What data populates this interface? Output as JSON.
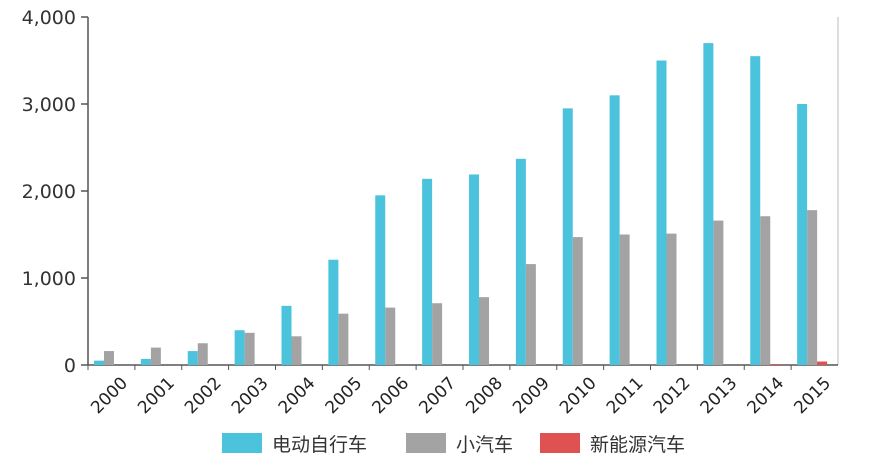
{
  "chart_data": {
    "type": "bar",
    "categories": [
      "2000",
      "2001",
      "2002",
      "2003",
      "2004",
      "2005",
      "2006",
      "2007",
      "2008",
      "2009",
      "2010",
      "2011",
      "2012",
      "2013",
      "2014",
      "2015"
    ],
    "series": [
      {
        "name": "电动自行车",
        "color": "#4cc3dd",
        "values": [
          50,
          70,
          160,
          400,
          680,
          1210,
          1950,
          2140,
          2190,
          2370,
          2950,
          3100,
          3500,
          3700,
          3550,
          3000
        ]
      },
      {
        "name": "小汽车",
        "color": "#a3a3a3",
        "values": [
          160,
          200,
          250,
          370,
          330,
          590,
          660,
          710,
          780,
          1160,
          1470,
          1500,
          1510,
          1660,
          1710,
          1780
        ]
      },
      {
        "name": "新能源汽车",
        "color": "#e05252",
        "values": [
          0,
          0,
          0,
          0,
          0,
          0,
          0,
          0,
          0,
          0,
          0,
          0,
          0,
          0,
          10,
          40
        ]
      }
    ],
    "ylim": [
      0,
      4000
    ],
    "yticks": [
      0,
      1000,
      2000,
      3000,
      4000
    ],
    "ytick_labels": [
      "0",
      "1,000",
      "2,000",
      "3,000",
      "4,000"
    ],
    "grid": false,
    "legend_position": "bottom"
  }
}
